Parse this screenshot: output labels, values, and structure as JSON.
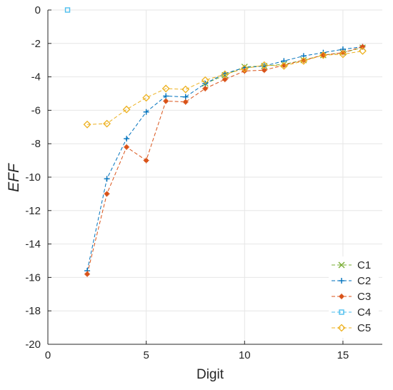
{
  "chart_data": {
    "type": "line",
    "xlabel": "Digit",
    "ylabel": "EFF",
    "xlim": [
      0,
      17
    ],
    "ylim": [
      -20,
      0
    ],
    "xticks": [
      "0",
      "5",
      "10",
      "15"
    ],
    "yticks": [
      "0",
      "-2",
      "-4",
      "-6",
      "-8",
      "-10",
      "-12",
      "-14",
      "-16",
      "-18",
      "-20"
    ],
    "grid": true,
    "legend_position": "bottom-right",
    "series": [
      {
        "name": "C1",
        "color": "#77AC30",
        "marker": "x",
        "x": [
          8,
          9,
          10,
          11,
          12,
          13,
          14,
          15,
          16
        ],
        "y": [
          -4.4,
          -3.9,
          -3.4,
          -3.35,
          -3.25,
          -3.0,
          -2.7,
          -2.55,
          -2.25
        ]
      },
      {
        "name": "C2",
        "color": "#0072BD",
        "marker": "plus",
        "x": [
          2,
          3,
          4,
          5,
          6,
          7,
          8,
          9,
          10,
          11,
          12,
          13,
          14,
          15,
          16
        ],
        "y": [
          -15.6,
          -10.1,
          -7.7,
          -6.1,
          -5.15,
          -5.2,
          -4.4,
          -3.8,
          -3.45,
          -3.35,
          -3.05,
          -2.75,
          -2.55,
          -2.35,
          -2.2
        ]
      },
      {
        "name": "C3",
        "color": "#D95319",
        "marker": "star",
        "x": [
          2,
          3,
          4,
          5,
          6,
          7,
          8,
          9,
          10,
          11,
          12,
          13,
          14,
          15,
          16
        ],
        "y": [
          -15.8,
          -11.0,
          -8.2,
          -9.0,
          -5.45,
          -5.5,
          -4.7,
          -4.15,
          -3.65,
          -3.6,
          -3.3,
          -3.0,
          -2.7,
          -2.55,
          -2.2
        ]
      },
      {
        "name": "C4",
        "color": "#4DBEEE",
        "marker": "square",
        "x": [
          1
        ],
        "y": [
          0
        ]
      },
      {
        "name": "C5",
        "color": "#EDB120",
        "marker": "diamond",
        "x": [
          2,
          3,
          4,
          5,
          6,
          7,
          8,
          9,
          10,
          11,
          12,
          13,
          14,
          15,
          16
        ],
        "y": [
          -6.85,
          -6.8,
          -5.95,
          -5.25,
          -4.7,
          -4.75,
          -4.2,
          -3.85,
          -3.5,
          -3.3,
          -3.35,
          -3.05,
          -2.7,
          -2.65,
          -2.45
        ]
      }
    ]
  }
}
